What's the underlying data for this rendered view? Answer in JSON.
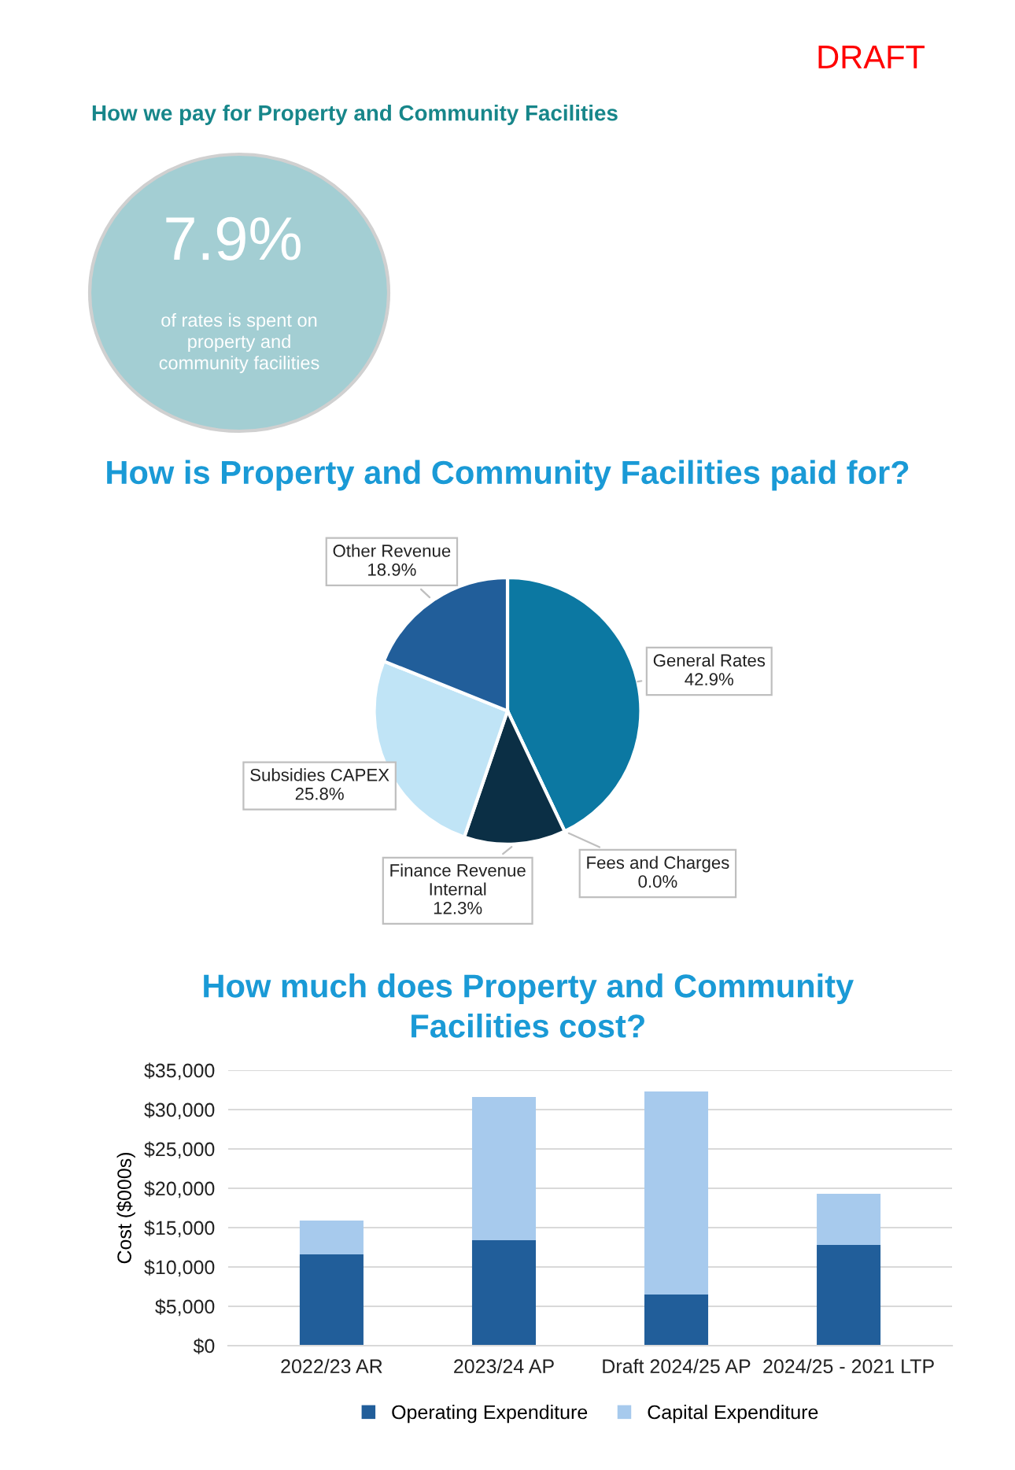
{
  "chart_data": [
    {
      "type": "other",
      "title": "How we pay for Property and Community Facilities",
      "color": "#a3ced3",
      "annotations": [
        "DRAFT",
        "7.9%",
        "of rates is spent on property and community facilities"
      ]
    },
    {
      "type": "pie",
      "title": "How is Property and Community Facilities paid for?",
      "categories": [
        "General Rates",
        "Fees and Charges",
        "Finance Revenue\nInternal",
        "Subsidies CAPEX",
        "Other Revenue"
      ],
      "values": [
        42.9,
        0.0,
        12.3,
        25.8,
        18.9
      ],
      "value_labels": [
        "42.9%",
        "0.0%",
        "12.3%",
        "25.8%",
        "18.9%"
      ],
      "colors": [
        "#0c78a2",
        "#5b9bd5",
        "#0b2f45",
        "#c0e4f6",
        "#215e9a"
      ]
    },
    {
      "type": "bar",
      "stacked": true,
      "title": "How much does Property and Community\nFacilities cost?",
      "ylabel": "Cost ($000s)",
      "categories": [
        "2022/23 AR",
        "2023/24 AP",
        "Draft 2024/25 AP",
        "2024/25 - 2021 LTP"
      ],
      "series": [
        {
          "name": "Operating Expenditure",
          "color": "#215e9a",
          "values": [
            11600,
            13400,
            6500,
            12800
          ]
        },
        {
          "name": "Capital Expenditure",
          "color": "#a7caed",
          "values": [
            4300,
            18200,
            25800,
            6500
          ]
        }
      ],
      "ylim": [
        0,
        35000
      ],
      "yticks": [
        {
          "value": 0,
          "label": "$0"
        },
        {
          "value": 5000,
          "label": "$5,000"
        },
        {
          "value": 10000,
          "label": "$10,000"
        },
        {
          "value": 15000,
          "label": "$15,000"
        },
        {
          "value": 20000,
          "label": "$20,000"
        },
        {
          "value": 25000,
          "label": "$25,000"
        },
        {
          "value": 30000,
          "label": "$30,000"
        },
        {
          "value": 35000,
          "label": "$35,000"
        }
      ],
      "grid": "y",
      "legend": "bottom"
    }
  ]
}
